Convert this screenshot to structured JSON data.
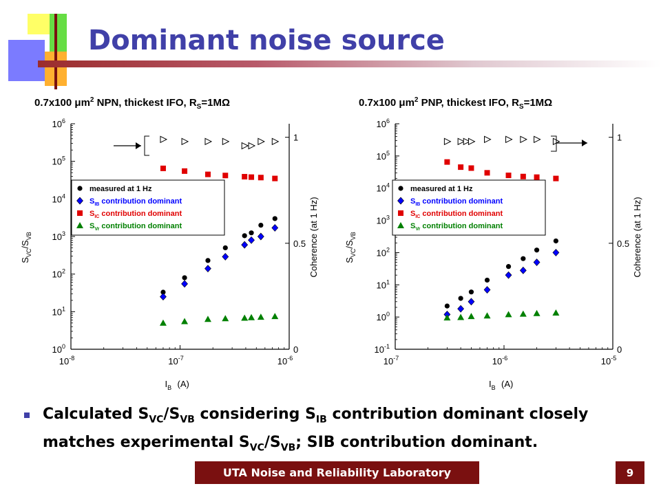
{
  "slide": {
    "title": "Dominant noise source",
    "bullet": {
      "text_parts": [
        "Calculated S",
        "VC",
        "/S",
        "VB",
        " considering S",
        "IB",
        " contribution  dominant closely matches experimental S",
        "VC",
        "/S",
        "VB",
        "; SIB contribution dominant."
      ]
    },
    "footer": "UTA Noise and Reliability Laboratory",
    "page_number": "9"
  },
  "colors": {
    "title": "#4040a8",
    "footer_bg": "#7a1010",
    "measured": "#000000",
    "ib": "#0000ff",
    "ic": "#e00000",
    "vr": "#008000"
  },
  "chart_data": [
    {
      "type": "scatter",
      "title_parts": [
        "0.7x100 μm",
        "2",
        " NPN, thickest IFO, R",
        "S",
        "=1MΩ"
      ],
      "xlabel": "I_B (A)",
      "ylabel_left": "S_VC/S_VB",
      "ylabel_right": "Coherence (at 1 Hz)",
      "x_scale": "log",
      "y_scale": "log",
      "xlim": [
        1e-08,
        1e-06
      ],
      "ylim": [
        1,
        1000000
      ],
      "y2lim": [
        0,
        1
      ],
      "x_ticks": [
        {
          "b": "10",
          "e": "-8"
        },
        {
          "b": "10",
          "e": "-7"
        },
        {
          "b": "10",
          "e": "-6"
        }
      ],
      "y_ticks": [
        {
          "b": "10",
          "e": "0"
        },
        {
          "b": "10",
          "e": "1"
        },
        {
          "b": "10",
          "e": "2"
        },
        {
          "b": "10",
          "e": "3"
        },
        {
          "b": "10",
          "e": "4"
        },
        {
          "b": "10",
          "e": "5"
        },
        {
          "b": "10",
          "e": "6"
        }
      ],
      "y2_ticks": [
        "0",
        "0.5",
        "1"
      ],
      "legend": [
        "measured at 1 Hz",
        "S_IB contribution dominant",
        "S_IC contribution dominant",
        "S_Vr contribution dominant"
      ],
      "series": [
        {
          "name": "measured at 1 Hz",
          "marker": "circle",
          "x": [
            7e-08,
            1.1e-07,
            1.8e-07,
            2.6e-07,
            3.9e-07,
            4.5e-07,
            5.5e-07,
            7.4e-07
          ],
          "y": [
            33,
            80,
            230,
            500,
            1050,
            1250,
            2000,
            3000
          ]
        },
        {
          "name": "S_IB contribution dominant",
          "marker": "diamond",
          "x": [
            7e-08,
            1.1e-07,
            1.8e-07,
            2.6e-07,
            3.9e-07,
            4.5e-07,
            5.5e-07,
            7.4e-07
          ],
          "y": [
            25,
            55,
            140,
            290,
            600,
            800,
            1000,
            1700
          ]
        },
        {
          "name": "S_IC contribution dominant",
          "marker": "square",
          "x": [
            7e-08,
            1.1e-07,
            1.8e-07,
            2.6e-07,
            3.9e-07,
            4.5e-07,
            5.5e-07,
            7.4e-07
          ],
          "y": [
            65000,
            55000,
            45000,
            42000,
            39000,
            38000,
            37000,
            35000
          ]
        },
        {
          "name": "S_Vr contribution dominant",
          "marker": "triangle",
          "x": [
            7e-08,
            1.1e-07,
            1.8e-07,
            2.6e-07,
            3.9e-07,
            4.5e-07,
            5.5e-07,
            7.4e-07
          ],
          "y": [
            5,
            5.5,
            6.3,
            6.6,
            6.8,
            7,
            7.2,
            7.5
          ]
        },
        {
          "name": "Coherence",
          "marker": "open-triangle-right",
          "axis": "y2",
          "x": [
            7e-08,
            1.1e-07,
            1.8e-07,
            2.6e-07,
            3.9e-07,
            4.5e-07,
            5.5e-07,
            7.4e-07
          ],
          "y": [
            0.99,
            0.98,
            0.98,
            0.98,
            0.96,
            0.96,
            0.98,
            0.98
          ]
        }
      ],
      "annotation": "arrow pointing at coherence markers"
    },
    {
      "type": "scatter",
      "title_parts": [
        "0.7x100 μm",
        "2",
        " PNP, thickest IFO, R",
        "S",
        "=1MΩ"
      ],
      "xlabel": "I_B (A)",
      "ylabel_left": "S_VC/S_VB",
      "ylabel_right": "Coherence (at 1 Hz)",
      "x_scale": "log",
      "y_scale": "log",
      "xlim": [
        1e-07,
        1e-05
      ],
      "ylim": [
        0.1,
        1000000
      ],
      "y2lim": [
        0,
        1
      ],
      "x_ticks": [
        {
          "b": "10",
          "e": "-7"
        },
        {
          "b": "10",
          "e": "-6"
        },
        {
          "b": "10",
          "e": "-5"
        }
      ],
      "y_ticks": [
        {
          "b": "10",
          "e": "-1"
        },
        {
          "b": "10",
          "e": "0"
        },
        {
          "b": "10",
          "e": "1"
        },
        {
          "b": "10",
          "e": "2"
        },
        {
          "b": "10",
          "e": "3"
        },
        {
          "b": "10",
          "e": "4"
        },
        {
          "b": "10",
          "e": "5"
        },
        {
          "b": "10",
          "e": "6"
        }
      ],
      "y2_ticks": [
        "0",
        "0.5",
        "1"
      ],
      "legend": [
        "measured at 1 Hz",
        "S_IB contribution dominant",
        "S_IC contribution dominant",
        "S_Vr contribution dominant"
      ],
      "series": [
        {
          "name": "measured at 1 Hz",
          "marker": "circle",
          "x": [
            3e-07,
            4e-07,
            5e-07,
            7e-07,
            1.1e-06,
            1.5e-06,
            2e-06,
            3e-06
          ],
          "y": [
            2.2,
            3.8,
            6,
            14,
            37,
            65,
            120,
            230
          ]
        },
        {
          "name": "S_IB contribution dominant",
          "marker": "diamond",
          "x": [
            3e-07,
            4e-07,
            5e-07,
            7e-07,
            1.1e-06,
            1.5e-06,
            2e-06,
            3e-06
          ],
          "y": [
            1.2,
            1.8,
            3,
            7,
            20,
            28,
            50,
            100
          ]
        },
        {
          "name": "S_IC contribution dominant",
          "marker": "square",
          "x": [
            3e-07,
            4e-07,
            5e-07,
            7e-07,
            1.1e-06,
            1.5e-06,
            2e-06,
            3e-06
          ],
          "y": [
            65000,
            45000,
            42000,
            30000,
            25000,
            23000,
            22000,
            20000
          ]
        },
        {
          "name": "S_Vr contribution dominant",
          "marker": "triangle",
          "x": [
            3e-07,
            4e-07,
            5e-07,
            7e-07,
            1.1e-06,
            1.5e-06,
            2e-06,
            3e-06
          ],
          "y": [
            0.95,
            0.98,
            1.05,
            1.1,
            1.2,
            1.25,
            1.3,
            1.35
          ]
        },
        {
          "name": "Coherence",
          "marker": "open-triangle-right",
          "axis": "y2",
          "x": [
            3e-07,
            4e-07,
            4.5e-07,
            5e-07,
            7e-07,
            1.1e-06,
            1.5e-06,
            2e-06,
            3e-06
          ],
          "y": [
            0.98,
            0.98,
            0.98,
            0.98,
            0.99,
            0.99,
            0.99,
            0.99,
            0.98
          ]
        }
      ],
      "annotation": "arrow pointing at coherence markers"
    }
  ]
}
